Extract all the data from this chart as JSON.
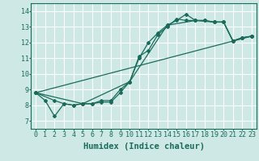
{
  "title": "",
  "xlabel": "Humidex (Indice chaleur)",
  "xlim": [
    -0.5,
    23.5
  ],
  "ylim": [
    6.5,
    14.5
  ],
  "xticks": [
    0,
    1,
    2,
    3,
    4,
    5,
    6,
    7,
    8,
    9,
    10,
    11,
    12,
    13,
    14,
    15,
    16,
    17,
    18,
    19,
    20,
    21,
    22,
    23
  ],
  "yticks": [
    7,
    8,
    9,
    10,
    11,
    12,
    13,
    14
  ],
  "bg_color": "#cde8e5",
  "grid_color": "#ffffff",
  "line_color": "#1a6b5a",
  "lines": [
    {
      "x": [
        0,
        1,
        2,
        3,
        4,
        5,
        6,
        7,
        8,
        9,
        10,
        11,
        12,
        13,
        14,
        15,
        16,
        17,
        18,
        19,
        20,
        21,
        22,
        23
      ],
      "y": [
        8.8,
        8.3,
        7.3,
        8.1,
        8.0,
        8.1,
        8.1,
        8.2,
        8.2,
        8.8,
        9.5,
        11.0,
        12.0,
        12.6,
        13.1,
        13.4,
        13.8,
        13.4,
        13.4,
        13.3,
        13.3,
        12.1,
        12.3,
        12.4
      ]
    },
    {
      "x": [
        0,
        2,
        3,
        4,
        5,
        6,
        7,
        8,
        9,
        10,
        11,
        12,
        13,
        14,
        15,
        16,
        17,
        18,
        19,
        20,
        21,
        22,
        23
      ],
      "y": [
        8.8,
        8.3,
        8.1,
        8.0,
        8.1,
        8.1,
        8.3,
        8.3,
        9.0,
        9.5,
        11.1,
        11.5,
        12.5,
        13.0,
        13.5,
        13.4,
        13.4,
        13.4,
        13.3,
        13.3,
        12.1,
        12.3,
        12.4
      ]
    },
    {
      "x": [
        0,
        23
      ],
      "y": [
        8.8,
        12.4
      ]
    },
    {
      "x": [
        0,
        5,
        10,
        14,
        17,
        19,
        20,
        21,
        22,
        23
      ],
      "y": [
        8.8,
        8.1,
        9.5,
        13.1,
        13.4,
        13.3,
        13.3,
        12.1,
        12.3,
        12.4
      ]
    }
  ],
  "marker": "D",
  "markersize": 2.0,
  "linewidth": 0.9,
  "tick_fontsize": 6.0,
  "xlabel_fontsize": 7.5,
  "xlabel_fontweight": "bold"
}
